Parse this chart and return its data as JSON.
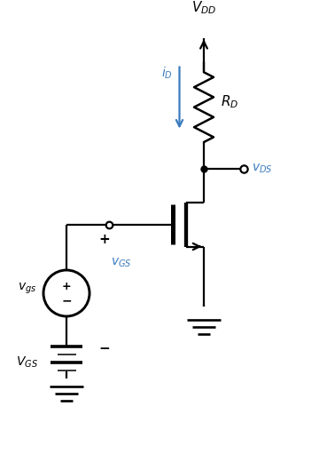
{
  "bg_color": "#ffffff",
  "black": "#000000",
  "blue": "#3a7bbf",
  "figsize": [
    3.69,
    5.2
  ],
  "dpi": 100,
  "vdd_label": "$V_{DD}$",
  "rd_label": "$R_D$",
  "id_label": "$i_D$",
  "vds_label": "$v_{DS}$",
  "vgs_label": "$v_{GS}$",
  "vgs_src_label": "$v_{gs}$",
  "VGS_label": "$V_{GS}$",
  "plus_label": "+",
  "minus_label": "−",
  "xlim": [
    0,
    7.38
  ],
  "ylim": [
    0,
    10.4
  ]
}
